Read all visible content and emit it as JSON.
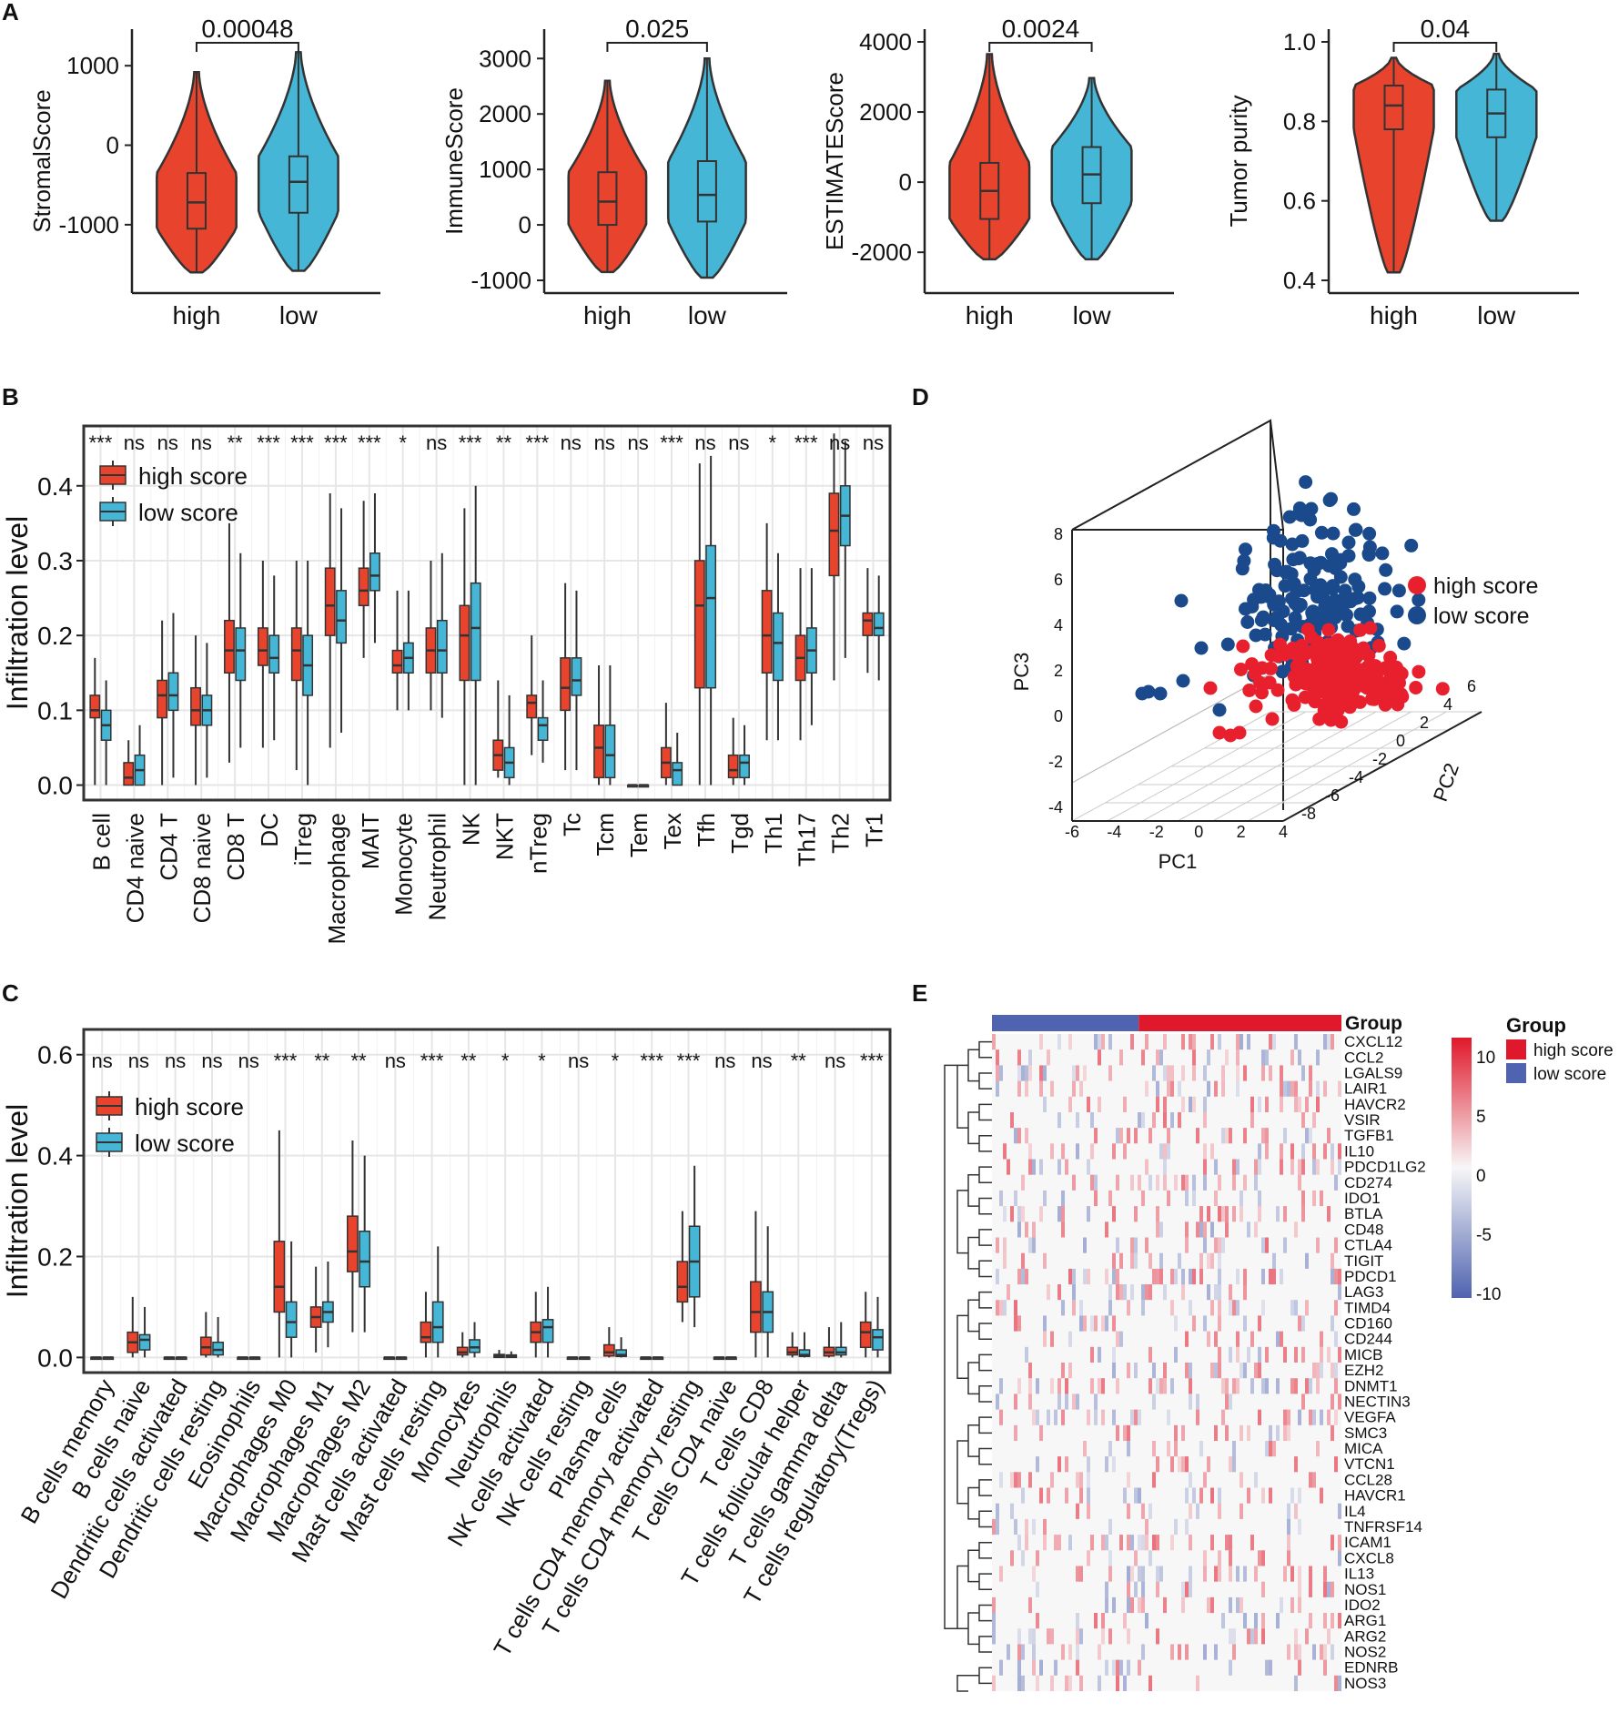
{
  "colors": {
    "high": "#E8432C",
    "low": "#45B6D6",
    "pca_high": "#E8202E",
    "pca_low": "#1A4A8C",
    "heat_high": "#E0182B",
    "heat_low": "#4F63B0",
    "heat_mid": "#F7F7F7"
  },
  "panel_labels": {
    "a": "A",
    "b": "B",
    "c": "C",
    "d": "D",
    "e": "E"
  },
  "chart_data": [
    {
      "type": "violin",
      "title": "",
      "ylabel": "StromalScore",
      "categories": [
        "high",
        "low"
      ],
      "pvalue": "0.00048",
      "ylim": [
        -1700,
        1300
      ],
      "ticks": [
        1000,
        0,
        -1000
      ],
      "tick_labels": [
        "1000",
        "0",
        "-1000"
      ],
      "series": [
        {
          "name": "high",
          "min": -1600,
          "q1": -1050,
          "median": -720,
          "q3": -350,
          "max": 920
        },
        {
          "name": "low",
          "min": -1580,
          "q1": -850,
          "median": -460,
          "q3": -140,
          "max": 1170
        }
      ]
    },
    {
      "type": "violin",
      "title": "",
      "ylabel": "ImmuneScore",
      "categories": [
        "high",
        "low"
      ],
      "pvalue": "0.025",
      "ylim": [
        -1000,
        3300
      ],
      "ticks": [
        3000,
        2000,
        1000,
        0,
        -1000
      ],
      "tick_labels": [
        "3000",
        "2000",
        "1000",
        "0",
        "-1000"
      ],
      "series": [
        {
          "name": "high",
          "min": -850,
          "q1": 0,
          "median": 420,
          "q3": 950,
          "max": 2600
        },
        {
          "name": "low",
          "min": -950,
          "q1": 60,
          "median": 540,
          "q3": 1150,
          "max": 3000
        }
      ]
    },
    {
      "type": "violin",
      "title": "",
      "ylabel": "ESTIMATEScore",
      "categories": [
        "high",
        "low"
      ],
      "pvalue": "0.0024",
      "ylim": [
        -2800,
        4000
      ],
      "ticks": [
        4000,
        2000,
        0,
        -2000
      ],
      "tick_labels": [
        "4000",
        "2000",
        "0",
        "-2000"
      ],
      "series": [
        {
          "name": "high",
          "min": -2200,
          "q1": -1050,
          "median": -250,
          "q3": 550,
          "max": 3650
        },
        {
          "name": "low",
          "min": -2200,
          "q1": -600,
          "median": 220,
          "q3": 1000,
          "max": 2970
        }
      ]
    },
    {
      "type": "violin",
      "title": "",
      "ylabel": "Tumor purity",
      "categories": [
        "high",
        "low"
      ],
      "pvalue": "0.04",
      "ylim": [
        0.4,
        1.0
      ],
      "ticks": [
        1.0,
        0.8,
        0.6,
        0.4
      ],
      "tick_labels": [
        "1.0",
        "0.8",
        "0.6",
        "0.4"
      ],
      "series": [
        {
          "name": "high",
          "min": 0.42,
          "q1": 0.78,
          "median": 0.84,
          "q3": 0.89,
          "max": 0.96
        },
        {
          "name": "low",
          "min": 0.55,
          "q1": 0.76,
          "median": 0.82,
          "q3": 0.88,
          "max": 0.97
        }
      ]
    },
    {
      "type": "boxplot",
      "ylabel": "Infiltration level",
      "legend": [
        "high score",
        "low score"
      ],
      "ylim": [
        -0.02,
        0.48
      ],
      "ticks": [
        0.0,
        0.1,
        0.2,
        0.3,
        0.4
      ],
      "tick_labels": [
        "0.0",
        "0.1",
        "0.2",
        "0.3",
        "0.4"
      ],
      "categories": [
        "B cell",
        "CD4 naive",
        "CD4 T",
        "CD8 naive",
        "CD8 T",
        "DC",
        "iTreg",
        "Macrophage",
        "MAIT",
        "Monocyte",
        "Neutrophil",
        "NK",
        "NKT",
        "nTreg",
        "Tc",
        "Tcm",
        "Tem",
        "Tex",
        "Tfh",
        "Tgd",
        "Th1",
        "Th17",
        "Th2",
        "Tr1"
      ],
      "significance": [
        "***",
        "ns",
        "ns",
        "ns",
        "**",
        "***",
        "***",
        "***",
        "***",
        "*",
        "ns",
        "***",
        "**",
        "***",
        "ns",
        "ns",
        "ns",
        "***",
        "ns",
        "ns",
        "*",
        "***",
        "ns",
        "ns"
      ],
      "series": [
        {
          "name": "high score",
          "boxes": [
            [
              0.0,
              0.09,
              0.1,
              0.12,
              0.17
            ],
            [
              0.0,
              0.0,
              0.01,
              0.03,
              0.06
            ],
            [
              0.0,
              0.09,
              0.12,
              0.14,
              0.22
            ],
            [
              0.0,
              0.08,
              0.1,
              0.13,
              0.2
            ],
            [
              0.03,
              0.15,
              0.18,
              0.22,
              0.35
            ],
            [
              0.05,
              0.16,
              0.18,
              0.21,
              0.3
            ],
            [
              0.02,
              0.14,
              0.18,
              0.21,
              0.3
            ],
            [
              0.05,
              0.2,
              0.24,
              0.29,
              0.39
            ],
            [
              0.17,
              0.24,
              0.26,
              0.29,
              0.38
            ],
            [
              0.1,
              0.15,
              0.16,
              0.18,
              0.26
            ],
            [
              0.1,
              0.15,
              0.18,
              0.21,
              0.3
            ],
            [
              0.0,
              0.14,
              0.2,
              0.24,
              0.37
            ],
            [
              0.01,
              0.02,
              0.04,
              0.06,
              0.14
            ],
            [
              0.04,
              0.09,
              0.11,
              0.12,
              0.2
            ],
            [
              0.02,
              0.1,
              0.13,
              0.17,
              0.27
            ],
            [
              0.0,
              0.01,
              0.05,
              0.08,
              0.16
            ],
            [
              0.0,
              0.0,
              0.0,
              0.0,
              0.0
            ],
            [
              0.0,
              0.01,
              0.03,
              0.05,
              0.11
            ],
            [
              0.0,
              0.13,
              0.24,
              0.3,
              0.43
            ],
            [
              0.0,
              0.01,
              0.02,
              0.04,
              0.09
            ],
            [
              0.06,
              0.15,
              0.2,
              0.26,
              0.35
            ],
            [
              0.06,
              0.14,
              0.17,
              0.2,
              0.29
            ],
            [
              0.14,
              0.28,
              0.34,
              0.39,
              0.47
            ],
            [
              0.15,
              0.2,
              0.22,
              0.23,
              0.29
            ]
          ]
        },
        {
          "name": "low score",
          "boxes": [
            [
              0.0,
              0.06,
              0.08,
              0.1,
              0.14
            ],
            [
              0.0,
              0.0,
              0.02,
              0.04,
              0.08
            ],
            [
              0.01,
              0.1,
              0.12,
              0.15,
              0.23
            ],
            [
              0.01,
              0.08,
              0.1,
              0.12,
              0.19
            ],
            [
              0.05,
              0.14,
              0.18,
              0.21,
              0.31
            ],
            [
              0.06,
              0.15,
              0.17,
              0.2,
              0.28
            ],
            [
              0.0,
              0.12,
              0.16,
              0.2,
              0.3
            ],
            [
              0.07,
              0.19,
              0.22,
              0.26,
              0.37
            ],
            [
              0.19,
              0.26,
              0.28,
              0.31,
              0.39
            ],
            [
              0.1,
              0.15,
              0.17,
              0.19,
              0.26
            ],
            [
              0.09,
              0.15,
              0.18,
              0.22,
              0.31
            ],
            [
              0.0,
              0.14,
              0.21,
              0.27,
              0.4
            ],
            [
              0.0,
              0.01,
              0.03,
              0.05,
              0.12
            ],
            [
              0.03,
              0.06,
              0.08,
              0.09,
              0.14
            ],
            [
              0.02,
              0.12,
              0.14,
              0.17,
              0.26
            ],
            [
              0.0,
              0.01,
              0.04,
              0.08,
              0.16
            ],
            [
              0.0,
              0.0,
              0.0,
              0.0,
              0.0
            ],
            [
              0.0,
              0.0,
              0.02,
              0.03,
              0.07
            ],
            [
              0.0,
              0.13,
              0.25,
              0.32,
              0.44
            ],
            [
              0.0,
              0.01,
              0.03,
              0.04,
              0.08
            ],
            [
              0.06,
              0.14,
              0.19,
              0.23,
              0.31
            ],
            [
              0.08,
              0.15,
              0.18,
              0.21,
              0.29
            ],
            [
              0.17,
              0.32,
              0.36,
              0.4,
              0.46
            ],
            [
              0.14,
              0.2,
              0.21,
              0.23,
              0.28
            ]
          ]
        }
      ]
    },
    {
      "type": "boxplot",
      "ylabel": "Infiltration level",
      "legend": [
        "high score",
        "low score"
      ],
      "ylim": [
        -0.03,
        0.65
      ],
      "ticks": [
        0.0,
        0.2,
        0.4,
        0.6
      ],
      "tick_labels": [
        "0.0",
        "0.2",
        "0.4",
        "0.6"
      ],
      "categories": [
        "B cells memory",
        "B cells naive",
        "Dendritic cells activated",
        "Dendritic cells resting",
        "Eosinophils",
        "Macrophages M0",
        "Macrophages M1",
        "Macrophages M2",
        "Mast cells activated",
        "Mast cells resting",
        "Monocytes",
        "Neutrophils",
        "NK cells activated",
        "NK cells resting",
        "Plasma cells",
        "T cells CD4 memory activated",
        "T cells CD4 memory resting",
        "T cells CD4 naive",
        "T cells CD8",
        "T cells follicular helper",
        "T cells gamma delta",
        "T cells regulatory(Tregs)"
      ],
      "significance": [
        "ns",
        "ns",
        "ns",
        "ns",
        "ns",
        "***",
        "**",
        "**",
        "ns",
        "***",
        "**",
        "*",
        "*",
        "ns",
        "*",
        "***",
        "***",
        "ns",
        "ns",
        "**",
        "ns",
        "***"
      ],
      "series": [
        {
          "name": "high score",
          "boxes": [
            [
              0,
              0,
              0,
              0,
              0
            ],
            [
              0,
              0.01,
              0.03,
              0.05,
              0.12
            ],
            [
              0,
              0,
              0,
              0,
              0
            ],
            [
              0,
              0.005,
              0.02,
              0.04,
              0.09
            ],
            [
              0,
              0,
              0,
              0,
              0
            ],
            [
              0,
              0.09,
              0.14,
              0.23,
              0.45
            ],
            [
              0.01,
              0.06,
              0.08,
              0.1,
              0.18
            ],
            [
              0.05,
              0.17,
              0.21,
              0.28,
              0.43
            ],
            [
              0,
              0,
              0,
              0,
              0
            ],
            [
              0,
              0.03,
              0.04,
              0.07,
              0.13
            ],
            [
              0,
              0.005,
              0.01,
              0.02,
              0.05
            ],
            [
              0,
              0,
              0.003,
              0.006,
              0.015
            ],
            [
              0,
              0.03,
              0.05,
              0.07,
              0.13
            ],
            [
              0,
              0,
              0,
              0,
              0
            ],
            [
              0,
              0.003,
              0.01,
              0.025,
              0.06
            ],
            [
              0,
              0,
              0,
              0,
              0
            ],
            [
              0.07,
              0.11,
              0.14,
              0.19,
              0.29
            ],
            [
              0,
              0,
              0,
              0,
              0
            ],
            [
              0,
              0.05,
              0.09,
              0.15,
              0.29
            ],
            [
              0,
              0.005,
              0.01,
              0.02,
              0.05
            ],
            [
              0,
              0.003,
              0.01,
              0.02,
              0.06
            ],
            [
              0,
              0.02,
              0.05,
              0.07,
              0.13
            ]
          ]
        },
        {
          "name": "low score",
          "boxes": [
            [
              0,
              0,
              0,
              0,
              0
            ],
            [
              0,
              0.015,
              0.035,
              0.045,
              0.1
            ],
            [
              0,
              0,
              0,
              0,
              0
            ],
            [
              0,
              0.005,
              0.015,
              0.03,
              0.08
            ],
            [
              0,
              0,
              0,
              0,
              0
            ],
            [
              0,
              0.04,
              0.07,
              0.11,
              0.23
            ],
            [
              0.02,
              0.07,
              0.09,
              0.11,
              0.19
            ],
            [
              0.05,
              0.14,
              0.19,
              0.25,
              0.4
            ],
            [
              0,
              0,
              0,
              0,
              0
            ],
            [
              0,
              0.03,
              0.06,
              0.11,
              0.22
            ],
            [
              0,
              0.01,
              0.02,
              0.035,
              0.07
            ],
            [
              0,
              0,
              0.002,
              0.005,
              0.012
            ],
            [
              0,
              0.03,
              0.06,
              0.075,
              0.14
            ],
            [
              0,
              0,
              0,
              0,
              0
            ],
            [
              0,
              0.002,
              0.005,
              0.015,
              0.04
            ],
            [
              0,
              0,
              0,
              0,
              0
            ],
            [
              0.06,
              0.12,
              0.19,
              0.26,
              0.38
            ],
            [
              0,
              0,
              0,
              0,
              0
            ],
            [
              0,
              0.05,
              0.09,
              0.13,
              0.26
            ],
            [
              0,
              0.002,
              0.005,
              0.015,
              0.05
            ],
            [
              0,
              0.005,
              0.01,
              0.02,
              0.07
            ],
            [
              0,
              0.015,
              0.04,
              0.055,
              0.12
            ]
          ]
        }
      ]
    },
    {
      "type": "scatter3d",
      "legend": [
        "high score",
        "low score"
      ],
      "xlabel": "PC1",
      "ylabel": "PC2",
      "zlabel": "PC3",
      "x_ticks": [
        "-6",
        "-4",
        "-2",
        "0",
        "2",
        "4"
      ],
      "y_ticks": [
        "-8",
        "-6",
        "-4",
        "-2",
        "0",
        "2",
        "4",
        "6"
      ],
      "z_ticks": [
        "-4",
        "-2",
        "0",
        "2",
        "4",
        "6",
        "8"
      ]
    },
    {
      "type": "heatmap",
      "legend_title": "Group",
      "top_label": "Group",
      "groups": [
        "high score",
        "low score"
      ],
      "scale_ticks": [
        "10",
        "5",
        "0",
        "-5",
        "-10"
      ],
      "genes": [
        "CXCL12",
        "CCL2",
        "LGALS9",
        "LAIR1",
        "HAVCR2",
        "VSIR",
        "TGFB1",
        "IL10",
        "PDCD1LG2",
        "CD274",
        "IDO1",
        "BTLA",
        "CD48",
        "CTLA4",
        "TIGIT",
        "PDCD1",
        "LAG3",
        "TIMD4",
        "CD160",
        "CD244",
        "MICB",
        "EZH2",
        "DNMT1",
        "NECTIN3",
        "VEGFA",
        "SMC3",
        "MICA",
        "VTCN1",
        "CCL28",
        "HAVCR1",
        "IL4",
        "TNFRSF14",
        "ICAM1",
        "CXCL8",
        "IL13",
        "NOS1",
        "IDO2",
        "ARG1",
        "ARG2",
        "NOS2",
        "EDNRB",
        "NOS3"
      ]
    }
  ]
}
